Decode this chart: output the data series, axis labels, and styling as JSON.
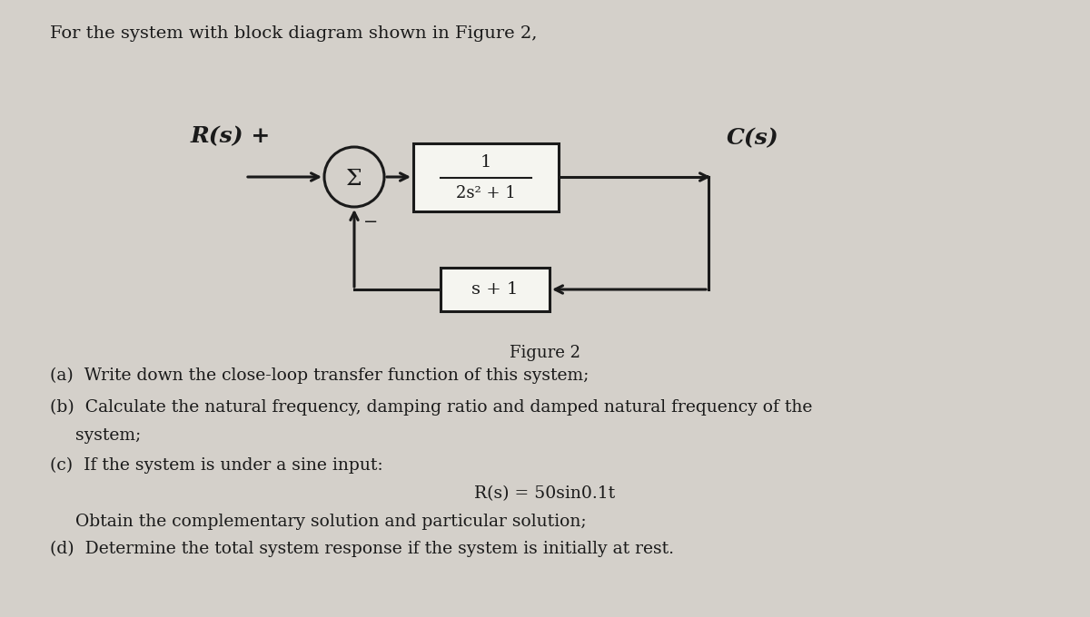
{
  "background_color": "#d4d0ca",
  "title_text": "For the system with block diagram shown in Figure 2,",
  "Rs_label": "R(s) +",
  "Cs_label": "C(s)",
  "sigma_label": "Σ",
  "forward_tf_num": "1",
  "forward_tf_den": "2s² + 1",
  "feedback_tf": "s + 1",
  "minus_label": "−",
  "figure_label": "Figure 2",
  "question_a": "(a)  Write down the close-loop transfer function of this system;",
  "question_b": "(b)  Calculate the natural frequency, damping ratio and damped natural frequency of the",
  "question_b2": "        system;",
  "question_c": "(c)  If the system is under a sine input:",
  "question_c_eq": "R(s) = 50sin0.1t",
  "question_c2": "        Obtain the complementary solution and particular solution;",
  "question_d": "(d)  Determine the total system response if the system is initially at rest.",
  "title_fontsize": 14,
  "text_fontsize": 13.5,
  "diagram_fontsize": 14,
  "box_color": "#f5f5f0",
  "box_edge_color": "#1a1a1a",
  "line_color": "#1a1a1a",
  "text_color": "#1a1a1a"
}
